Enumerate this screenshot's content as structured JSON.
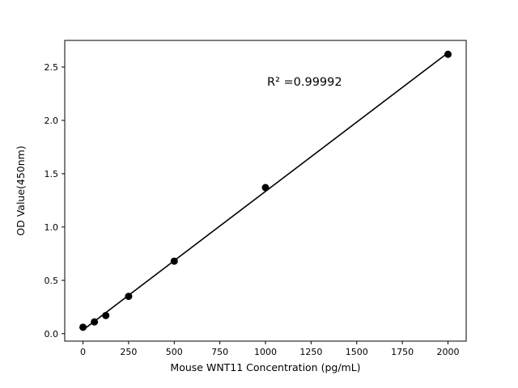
{
  "figure": {
    "background": "#ffffff",
    "axis_color": "#000000"
  },
  "chart_data": {
    "type": "scatter",
    "title": "",
    "xlabel": "Mouse WNT11 Concentration (pg/mL)",
    "ylabel": "OD Value(450nm)",
    "x": [
      0,
      62.5,
      125,
      250,
      500,
      1000,
      2000
    ],
    "y": [
      0.06,
      0.11,
      0.17,
      0.35,
      0.68,
      1.37,
      2.62
    ],
    "line": true,
    "marker_color": "#000000",
    "line_color": "#000000",
    "xlim": [
      -100,
      2100
    ],
    "ylim": [
      -0.07,
      2.75
    ],
    "xticks": [
      0,
      250,
      500,
      750,
      1000,
      1250,
      1500,
      1750,
      2000
    ],
    "yticks": [
      0.0,
      0.5,
      1.0,
      1.5,
      2.0,
      2.5
    ],
    "grid": false,
    "legend": null,
    "annotation": {
      "text": "R² =0.99992",
      "x": 1000,
      "y": 2.38
    }
  }
}
